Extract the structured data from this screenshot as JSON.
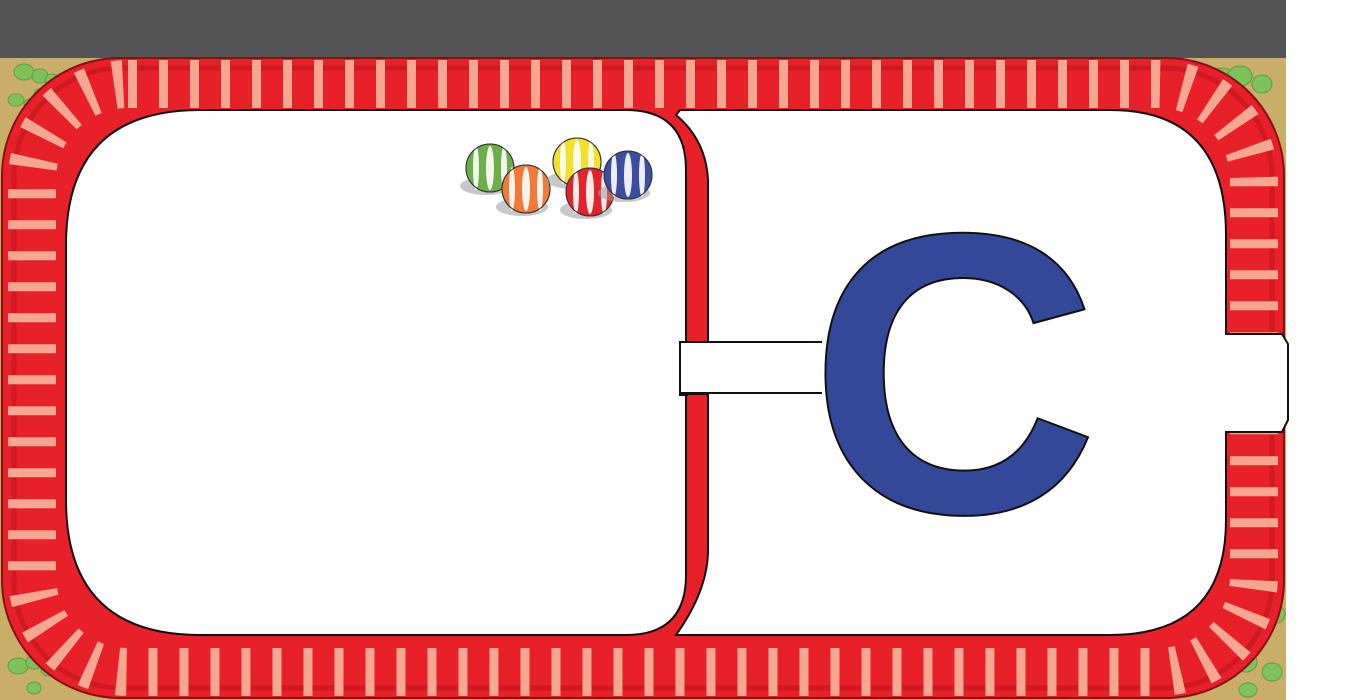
{
  "game": {
    "letter": "C",
    "colors": {
      "top_bar": "#555555",
      "ground": "#C8AE66",
      "track_red": "#E8202A",
      "track_dark": "#B8141C",
      "track_stripe": "#F7A791",
      "play_area": "#FFFFFF",
      "letter": "#34489A",
      "bush": "#7FC15B",
      "bush_dark": "#5E9E42"
    },
    "balls": [
      {
        "name": "green-ball",
        "color": "#6DAE4A"
      },
      {
        "name": "orange-ball",
        "color": "#F07A3A"
      },
      {
        "name": "yellow-ball",
        "color": "#F2E02A"
      },
      {
        "name": "red-ball",
        "color": "#E0242C"
      },
      {
        "name": "blue-ball",
        "color": "#3E4E9E"
      }
    ]
  }
}
